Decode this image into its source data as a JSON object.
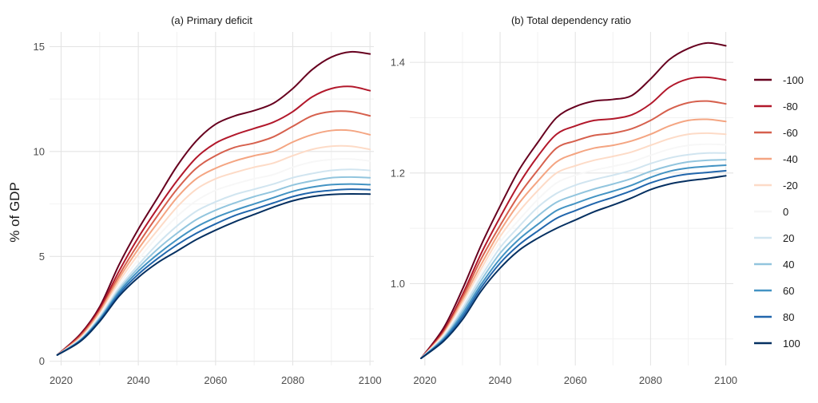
{
  "figure": {
    "ylabel": "% of GDP"
  },
  "colors": {
    "-100": "#67001f",
    "-80": "#b2182b",
    "-60": "#d6604d",
    "-40": "#f4a582",
    "-20": "#fddbc7",
    "0": "#f7f7f7",
    "20": "#d1e5f0",
    "40": "#92c5de",
    "60": "#4393c3",
    "80": "#2166ac",
    "100": "#053061"
  },
  "legend": [
    {
      "label": "-100",
      "key": "-100"
    },
    {
      "label": "-80",
      "key": "-80"
    },
    {
      "label": "-60",
      "key": "-60"
    },
    {
      "label": "-40",
      "key": "-40"
    },
    {
      "label": "-20",
      "key": "-20"
    },
    {
      "label": "0",
      "key": "0"
    },
    {
      "label": "20",
      "key": "20"
    },
    {
      "label": "40",
      "key": "40"
    },
    {
      "label": "60",
      "key": "60"
    },
    {
      "label": "80",
      "key": "80"
    },
    {
      "label": "100",
      "key": "100"
    }
  ],
  "chart_data": [
    {
      "type": "line",
      "title": "(a) Primary deficit",
      "xlabel": "",
      "ylabel": "% of GDP",
      "xlim": [
        2017,
        2101
      ],
      "ylim": [
        -0.2,
        15.7
      ],
      "xticks": [
        2020,
        2040,
        2060,
        2080,
        2100
      ],
      "xtick_labels": [
        "2020",
        "2040",
        "2060",
        "2080",
        "2100"
      ],
      "yticks": [
        0,
        5,
        10,
        15
      ],
      "ytick_labels": [
        "0",
        "5",
        "10",
        "15"
      ],
      "grid": true,
      "x": [
        2019,
        2025,
        2030,
        2035,
        2040,
        2045,
        2050,
        2055,
        2060,
        2065,
        2070,
        2075,
        2080,
        2085,
        2090,
        2095,
        2100
      ],
      "series": [
        {
          "name": "-100",
          "values": [
            0.3,
            1.3,
            2.6,
            4.6,
            6.3,
            7.8,
            9.3,
            10.5,
            11.3,
            11.7,
            11.95,
            12.3,
            13.0,
            13.9,
            14.5,
            14.75,
            14.65
          ]
        },
        {
          "name": "-80",
          "values": [
            0.3,
            1.25,
            2.5,
            4.3,
            5.9,
            7.3,
            8.6,
            9.7,
            10.4,
            10.8,
            11.1,
            11.4,
            11.9,
            12.6,
            13.0,
            13.1,
            12.9
          ]
        },
        {
          "name": "-60",
          "values": [
            0.3,
            1.2,
            2.4,
            4.1,
            5.6,
            6.95,
            8.2,
            9.2,
            9.8,
            10.2,
            10.4,
            10.7,
            11.2,
            11.7,
            11.9,
            11.9,
            11.7
          ]
        },
        {
          "name": "-40",
          "values": [
            0.3,
            1.15,
            2.35,
            3.95,
            5.35,
            6.6,
            7.8,
            8.7,
            9.2,
            9.55,
            9.8,
            10.0,
            10.45,
            10.8,
            11.0,
            11.0,
            10.8
          ]
        },
        {
          "name": "-20",
          "values": [
            0.3,
            1.1,
            2.25,
            3.8,
            5.1,
            6.25,
            7.35,
            8.2,
            8.7,
            9.0,
            9.25,
            9.45,
            9.8,
            10.1,
            10.25,
            10.25,
            10.1
          ]
        },
        {
          "name": "0",
          "values": [
            0.3,
            1.07,
            2.2,
            3.65,
            4.85,
            5.95,
            6.9,
            7.65,
            8.15,
            8.45,
            8.7,
            8.9,
            9.25,
            9.5,
            9.62,
            9.64,
            9.55
          ]
        },
        {
          "name": "20",
          "values": [
            0.3,
            1.04,
            2.12,
            3.5,
            4.6,
            5.6,
            6.45,
            7.15,
            7.6,
            7.95,
            8.2,
            8.45,
            8.75,
            8.95,
            9.1,
            9.15,
            9.1
          ]
        },
        {
          "name": "40",
          "values": [
            0.3,
            1.02,
            2.05,
            3.4,
            4.45,
            5.35,
            6.1,
            6.75,
            7.2,
            7.55,
            7.85,
            8.1,
            8.4,
            8.6,
            8.75,
            8.78,
            8.75
          ]
        },
        {
          "name": "60",
          "values": [
            0.3,
            1.0,
            2.0,
            3.3,
            4.3,
            5.1,
            5.8,
            6.4,
            6.85,
            7.2,
            7.5,
            7.8,
            8.1,
            8.3,
            8.42,
            8.45,
            8.42
          ]
        },
        {
          "name": "80",
          "values": [
            0.3,
            0.98,
            1.95,
            3.2,
            4.15,
            4.9,
            5.55,
            6.1,
            6.55,
            6.95,
            7.25,
            7.55,
            7.85,
            8.05,
            8.15,
            8.2,
            8.18
          ]
        },
        {
          "name": "100",
          "values": [
            0.3,
            0.95,
            1.9,
            3.1,
            4.0,
            4.7,
            5.25,
            5.8,
            6.25,
            6.65,
            7.0,
            7.35,
            7.65,
            7.85,
            7.95,
            7.98,
            7.97
          ]
        }
      ]
    },
    {
      "type": "line",
      "title": "(b) Total dependency ratio",
      "xlabel": "",
      "ylabel": "",
      "xlim": [
        2016,
        2102
      ],
      "ylim": [
        0.852,
        1.455
      ],
      "xticks": [
        2020,
        2040,
        2060,
        2080,
        2100
      ],
      "xtick_labels": [
        "2020",
        "2040",
        "2060",
        "2080",
        "2100"
      ],
      "yticks": [
        1.0,
        1.2,
        1.4
      ],
      "ytick_labels": [
        "1.0",
        "1.2",
        "1.4"
      ],
      "grid": true,
      "x": [
        2019,
        2025,
        2030,
        2035,
        2040,
        2045,
        2050,
        2055,
        2060,
        2065,
        2070,
        2075,
        2080,
        2085,
        2090,
        2095,
        2100
      ],
      "series": [
        {
          "name": "-100",
          "values": [
            0.865,
            0.92,
            0.99,
            1.07,
            1.14,
            1.205,
            1.255,
            1.3,
            1.32,
            1.33,
            1.333,
            1.34,
            1.37,
            1.405,
            1.425,
            1.435,
            1.43
          ]
        },
        {
          "name": "-80",
          "values": [
            0.865,
            0.915,
            0.98,
            1.055,
            1.12,
            1.18,
            1.23,
            1.27,
            1.285,
            1.295,
            1.298,
            1.305,
            1.325,
            1.355,
            1.37,
            1.373,
            1.368
          ]
        },
        {
          "name": "-60",
          "values": [
            0.865,
            0.912,
            0.975,
            1.045,
            1.105,
            1.16,
            1.205,
            1.245,
            1.258,
            1.268,
            1.272,
            1.28,
            1.295,
            1.315,
            1.327,
            1.33,
            1.325
          ]
        },
        {
          "name": "-40",
          "values": [
            0.865,
            0.91,
            0.97,
            1.035,
            1.095,
            1.145,
            1.185,
            1.22,
            1.235,
            1.245,
            1.25,
            1.258,
            1.27,
            1.285,
            1.295,
            1.297,
            1.293
          ]
        },
        {
          "name": "-20",
          "values": [
            0.865,
            0.908,
            0.965,
            1.027,
            1.085,
            1.13,
            1.168,
            1.2,
            1.213,
            1.223,
            1.23,
            1.238,
            1.25,
            1.262,
            1.27,
            1.272,
            1.27
          ]
        },
        {
          "name": "0",
          "values": [
            0.865,
            0.906,
            0.96,
            1.02,
            1.075,
            1.115,
            1.152,
            1.182,
            1.196,
            1.205,
            1.212,
            1.22,
            1.232,
            1.243,
            1.25,
            1.252,
            1.251
          ]
        },
        {
          "name": "20",
          "values": [
            0.865,
            0.904,
            0.955,
            1.013,
            1.065,
            1.103,
            1.138,
            1.163,
            1.178,
            1.188,
            1.196,
            1.205,
            1.217,
            1.227,
            1.233,
            1.236,
            1.236
          ]
        },
        {
          "name": "40",
          "values": [
            0.865,
            0.902,
            0.95,
            1.006,
            1.055,
            1.09,
            1.122,
            1.147,
            1.16,
            1.171,
            1.18,
            1.19,
            1.203,
            1.213,
            1.22,
            1.223,
            1.224
          ]
        },
        {
          "name": "60",
          "values": [
            0.865,
            0.9,
            0.945,
            0.999,
            1.045,
            1.08,
            1.107,
            1.132,
            1.145,
            1.157,
            1.167,
            1.178,
            1.192,
            1.203,
            1.209,
            1.212,
            1.214
          ]
        },
        {
          "name": "80",
          "values": [
            0.865,
            0.898,
            0.94,
            0.993,
            1.037,
            1.07,
            1.095,
            1.118,
            1.132,
            1.145,
            1.156,
            1.168,
            1.182,
            1.192,
            1.198,
            1.201,
            1.204
          ]
        },
        {
          "name": "100",
          "values": [
            0.865,
            0.896,
            0.935,
            0.987,
            1.028,
            1.06,
            1.082,
            1.1,
            1.115,
            1.13,
            1.142,
            1.155,
            1.17,
            1.18,
            1.186,
            1.19,
            1.195
          ]
        }
      ]
    }
  ]
}
